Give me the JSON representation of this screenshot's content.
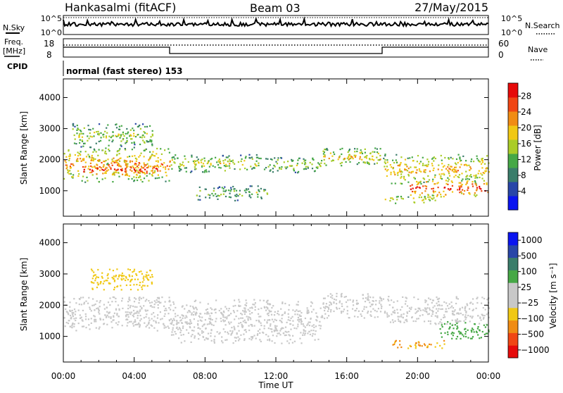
{
  "header": {
    "station": "Hankasalmi (fitACF)",
    "beam": "Beam 03",
    "date": "27/May/2015"
  },
  "top_panels": {
    "nsky_label": "N.Sky",
    "nsearch_label": "N.Search",
    "freq_label_line1": "Freq.",
    "freq_label_line2": "[MHz]",
    "nave_label": "Nave",
    "cpid_label": "CPID",
    "cpid_text": "normal (fast stereo) 153",
    "noise_ticks_left": [
      "10^5",
      "10^0"
    ],
    "noise_ticks_right": [
      "10^5",
      "10^0"
    ],
    "freq_ticks": [
      "18",
      "8"
    ],
    "nave_ticks": [
      "60",
      "0"
    ]
  },
  "chart_data": [
    {
      "type": "heatmap",
      "panel": "power",
      "ylabel": "Slant Range [km]",
      "xlabel": "Time UT",
      "x_ticks": [
        "00:00",
        "04:00",
        "08:00",
        "12:00",
        "16:00",
        "20:00",
        "00:00"
      ],
      "xlim_hours": [
        0,
        24
      ],
      "ylim": [
        180,
        4600
      ],
      "y_ticks": [
        "1000",
        "2000",
        "3000",
        "4000"
      ],
      "colorbar": {
        "label": "Power [dB]",
        "ticks": [
          "4",
          "8",
          "12",
          "16",
          "20",
          "24",
          "28"
        ],
        "range": [
          0,
          30
        ],
        "colors": [
          "#0a14f0",
          "#2846a8",
          "#3a7d6a",
          "#46a846",
          "#aacc28",
          "#f0c814",
          "#f08c14",
          "#f04614",
          "#e60a0a"
        ]
      },
      "bands": [
        {
          "t": [
            0.0,
            6.0
          ],
          "range": [
            1300,
            2400
          ],
          "level": 0.65
        },
        {
          "t": [
            1.0,
            5.5
          ],
          "range": [
            1500,
            1900
          ],
          "level": 0.85
        },
        {
          "t": [
            0.5,
            5.0
          ],
          "range": [
            2400,
            3200
          ],
          "level": 0.45
        },
        {
          "t": [
            6.0,
            11.0
          ],
          "range": [
            1600,
            2200
          ],
          "level": 0.5
        },
        {
          "t": [
            7.5,
            11.5
          ],
          "range": [
            700,
            1200
          ],
          "level": 0.4
        },
        {
          "t": [
            11.0,
            14.5
          ],
          "range": [
            1600,
            2100
          ],
          "level": 0.45
        },
        {
          "t": [
            14.5,
            18.0
          ],
          "range": [
            1800,
            2400
          ],
          "level": 0.55
        },
        {
          "t": [
            18.0,
            24.0
          ],
          "range": [
            1200,
            2200
          ],
          "level": 0.6
        },
        {
          "t": [
            19.5,
            24.0
          ],
          "range": [
            800,
            1400
          ],
          "level": 0.8
        },
        {
          "t": [
            18.0,
            21.0
          ],
          "range": [
            600,
            900
          ],
          "level": 0.5
        }
      ]
    },
    {
      "type": "heatmap",
      "panel": "velocity",
      "ylabel": "Slant Range [km]",
      "xlabel": "Time UT",
      "x_ticks": [
        "00:00",
        "04:00",
        "08:00",
        "12:00",
        "16:00",
        "20:00",
        "00:00"
      ],
      "xlim_hours": [
        0,
        24
      ],
      "ylim": [
        180,
        4600
      ],
      "y_ticks": [
        "1000",
        "2000",
        "3000",
        "4000"
      ],
      "colorbar": {
        "label": "Velocity [m s⁻¹]",
        "ticks": [
          "1000",
          "500",
          "100",
          "25",
          "−25",
          "−100",
          "−500",
          "−1000"
        ],
        "range": [
          -1000,
          1000
        ],
        "colors": [
          "#e60a0a",
          "#f04614",
          "#f08c14",
          "#f0c814",
          "#c8c8c8",
          "#c8c8c8",
          "#46a846",
          "#3a7d6a",
          "#2846a8",
          "#0a14f0"
        ]
      },
      "bands": [
        {
          "t": [
            0.0,
            6.0
          ],
          "range": [
            1200,
            2300
          ],
          "value": 0
        },
        {
          "t": [
            6.0,
            14.5
          ],
          "range": [
            800,
            2200
          ],
          "value": 0
        },
        {
          "t": [
            14.5,
            18.0
          ],
          "range": [
            1600,
            2400
          ],
          "value": 0
        },
        {
          "t": [
            18.0,
            24.0
          ],
          "range": [
            1400,
            2300
          ],
          "value": 0
        },
        {
          "t": [
            1.5,
            5.0
          ],
          "range": [
            2500,
            3200
          ],
          "value": -300
        },
        {
          "t": [
            18.5,
            21.5
          ],
          "range": [
            600,
            900
          ],
          "value": -400
        },
        {
          "t": [
            21.0,
            24.0
          ],
          "range": [
            900,
            1500
          ],
          "value": 300
        }
      ]
    }
  ]
}
